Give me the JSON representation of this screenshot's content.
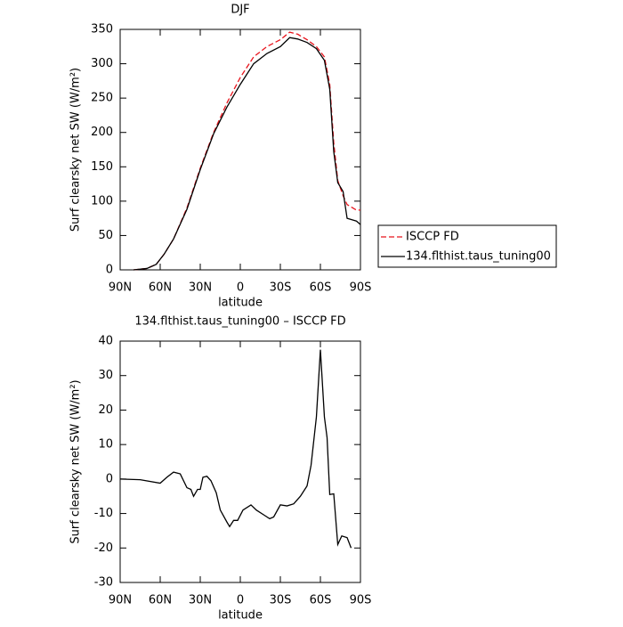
{
  "chart_data": [
    {
      "type": "line",
      "title": "DJF",
      "xlabel": "latitude",
      "ylabel": "Surf clearsky net SW (W/m²)",
      "xlim": [
        90,
        -90
      ],
      "ylim": [
        0,
        350
      ],
      "xticks": [
        {
          "value": 90,
          "label": "90N"
        },
        {
          "value": 60,
          "label": "60N"
        },
        {
          "value": 30,
          "label": "30N"
        },
        0,
        {
          "value": -30,
          "label": "30S"
        },
        {
          "value": -60,
          "label": "60S"
        },
        {
          "value": -90,
          "label": "90S"
        }
      ],
      "yticks": [
        0,
        50,
        100,
        150,
        200,
        250,
        300,
        350
      ],
      "legend": "right",
      "x": [
        80,
        70,
        63,
        57,
        50,
        40,
        30,
        20,
        10,
        0,
        -10,
        -20,
        -30,
        -37,
        -43,
        -50,
        -57,
        -63,
        -67,
        -70,
        -73,
        -77,
        -80,
        -87,
        -90
      ],
      "series": [
        {
          "name": "ISCCP FD",
          "color": "#e8141c",
          "linestyle": "dashed",
          "values": [
            0,
            2,
            8,
            23,
            45,
            90,
            148,
            200,
            243,
            280,
            310,
            325,
            335,
            346,
            343,
            335,
            325,
            310,
            270,
            185,
            130,
            108,
            95,
            87,
            87
          ]
        },
        {
          "name": "134.flthist.taus_tuning00",
          "color": "#000000",
          "linestyle": "solid",
          "values": [
            0,
            2,
            8,
            23,
            45,
            88,
            146,
            198,
            237,
            270,
            300,
            315,
            325,
            338,
            336,
            331,
            322,
            305,
            263,
            172,
            127,
            114,
            75,
            71,
            66
          ]
        }
      ]
    },
    {
      "type": "line",
      "title": "134.flthist.taus_tuning00 – ISCCP FD",
      "xlabel": "latitude",
      "ylabel": "Surf clearsky net SW (W/m²)",
      "xlim": [
        90,
        -90
      ],
      "ylim": [
        -30,
        40
      ],
      "xticks": [
        {
          "value": 90,
          "label": "90N"
        },
        {
          "value": 60,
          "label": "60N"
        },
        {
          "value": 30,
          "label": "30N"
        },
        0,
        {
          "value": -30,
          "label": "30S"
        },
        {
          "value": -60,
          "label": "60S"
        },
        {
          "value": -90,
          "label": "90S"
        }
      ],
      "yticks": [
        -30,
        -20,
        -10,
        0,
        10,
        20,
        30,
        40
      ],
      "x": [
        90,
        75,
        60,
        55,
        50,
        45,
        40,
        37,
        35,
        32,
        30,
        28,
        25,
        22,
        18,
        15,
        10,
        8,
        5,
        2,
        -2,
        -8,
        -12,
        -18,
        -22,
        -25,
        -30,
        -35,
        -40,
        -45,
        -50,
        -53,
        -57,
        -60,
        -63,
        -65,
        -67,
        -70,
        -73,
        -76,
        -80,
        -83
      ],
      "series": [
        {
          "color": "#000000",
          "linestyle": "solid",
          "values": [
            0,
            -0.2,
            -1.2,
            0.5,
            2,
            1.5,
            -2.5,
            -3,
            -5,
            -3,
            -3,
            0.5,
            0.8,
            -0.5,
            -4,
            -9,
            -12.5,
            -13.8,
            -12,
            -12,
            -9,
            -7.5,
            -9,
            -10.5,
            -11.5,
            -11,
            -7.5,
            -7.8,
            -7.2,
            -5,
            -2,
            4,
            18,
            37.5,
            18,
            12,
            -4.5,
            -4.3,
            -19,
            -16.5,
            -17,
            -20
          ]
        }
      ]
    }
  ]
}
